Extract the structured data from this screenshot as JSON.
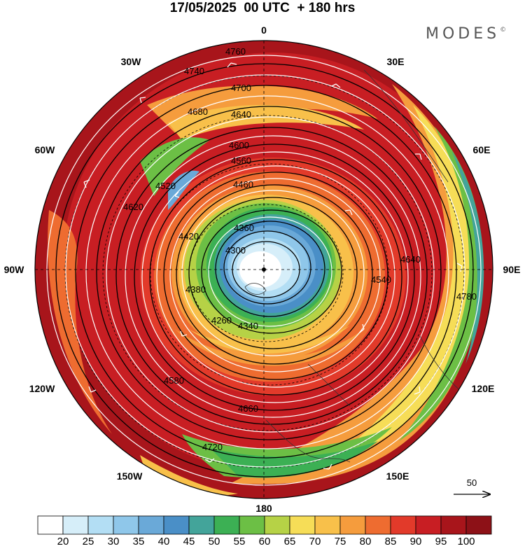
{
  "header": {
    "title": "17/05/2025  00 UTC  + 180 hrs",
    "brand": "MODES",
    "brand_mark": "©"
  },
  "map": {
    "projection": "north polar stereographic",
    "longitude_labels": [
      {
        "name": "0",
        "value": "0"
      },
      {
        "name": "30e",
        "value": "30E"
      },
      {
        "name": "60e",
        "value": "60E"
      },
      {
        "name": "90e",
        "value": "90E"
      },
      {
        "name": "120e",
        "value": "120E"
      },
      {
        "name": "150e",
        "value": "150E"
      },
      {
        "name": "180",
        "value": "180"
      },
      {
        "name": "150w",
        "value": "150W"
      },
      {
        "name": "120w",
        "value": "120W"
      },
      {
        "name": "90w",
        "value": "90W"
      },
      {
        "name": "60w",
        "value": "60W"
      },
      {
        "name": "30w",
        "value": "30W"
      }
    ],
    "contour_labels": [
      "4760",
      "4740",
      "4700",
      "4680",
      "4640",
      "4600",
      "4560",
      "4520",
      "4460",
      "4420",
      "4380",
      "4360",
      "4300",
      "4260",
      "4340",
      "4540",
      "4640",
      "4660",
      "4720",
      "4780",
      "4620",
      "4580"
    ],
    "reference_vector_label": "50",
    "colors": {
      "land_border": "#333333",
      "grid": "#000000",
      "streamline": "#ffffff",
      "contour": "#000000"
    }
  },
  "colorbar": {
    "ticks": [
      "20",
      "25",
      "30",
      "35",
      "40",
      "45",
      "50",
      "55",
      "60",
      "65",
      "70",
      "75",
      "80",
      "85",
      "90",
      "95",
      "100"
    ],
    "colors": [
      "#ffffff",
      "#d6eef9",
      "#b3def4",
      "#8fc7ea",
      "#6aa9d8",
      "#4a8fc7",
      "#43a49a",
      "#3cb054",
      "#6cbf45",
      "#b6d246",
      "#f6dd57",
      "#f8c04a",
      "#f59c3d",
      "#ee6c30",
      "#e23a2a",
      "#c81e23",
      "#a8151b",
      "#8d1117"
    ]
  }
}
